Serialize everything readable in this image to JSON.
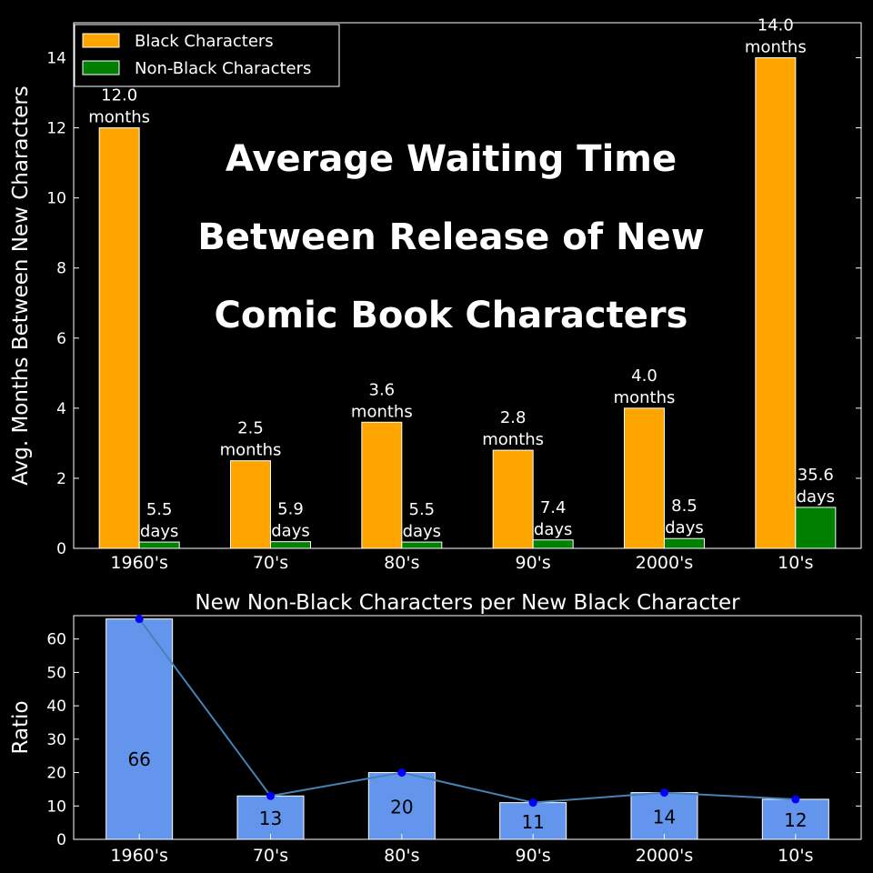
{
  "chart_data": [
    {
      "type": "bar",
      "title_lines": [
        "Average Waiting Time",
        "Between Release of New",
        "Comic Book Characters"
      ],
      "ylabel": "Avg. Months Between New Characters",
      "xlabel": "",
      "ylim": [
        0,
        15
      ],
      "yticks": [
        0,
        2,
        4,
        6,
        8,
        10,
        12,
        14
      ],
      "categories": [
        "1960's",
        "70's",
        "80's",
        "90's",
        "2000's",
        "10's"
      ],
      "legend_position": "top-left",
      "series": [
        {
          "name": "Black Characters",
          "color": "#FFA500",
          "values": [
            12.0,
            2.5,
            3.6,
            2.8,
            4.0,
            14.0
          ],
          "labels": [
            [
              "12.0",
              "months"
            ],
            [
              "2.5",
              "months"
            ],
            [
              "3.6",
              "months"
            ],
            [
              "2.8",
              "months"
            ],
            [
              "4.0",
              "months"
            ],
            [
              "14.0",
              "months"
            ]
          ]
        },
        {
          "name": "Non-Black Characters",
          "color": "#008000",
          "values": [
            0.18,
            0.19,
            0.18,
            0.24,
            0.28,
            1.17
          ],
          "labels": [
            [
              "5.5",
              "days"
            ],
            [
              "5.9",
              "days"
            ],
            [
              "5.5",
              "days"
            ],
            [
              "7.4",
              "days"
            ],
            [
              "8.5",
              "days"
            ],
            [
              "35.6",
              "days"
            ]
          ]
        }
      ]
    },
    {
      "type": "bar",
      "title": "New Non-Black Characters per New Black Character",
      "ylabel": "Ratio",
      "xlabel": "",
      "ylim": [
        0,
        67
      ],
      "yticks": [
        0,
        10,
        20,
        30,
        40,
        50,
        60
      ],
      "categories": [
        "1960's",
        "70's",
        "80's",
        "90's",
        "2000's",
        "10's"
      ],
      "values": [
        66,
        13,
        20,
        11,
        14,
        12
      ],
      "labels": [
        "66",
        "13",
        "20",
        "11",
        "14",
        "12"
      ],
      "bar_color": "#6495ED",
      "line_color": "#4682B4",
      "marker_color": "#0000FF"
    }
  ]
}
